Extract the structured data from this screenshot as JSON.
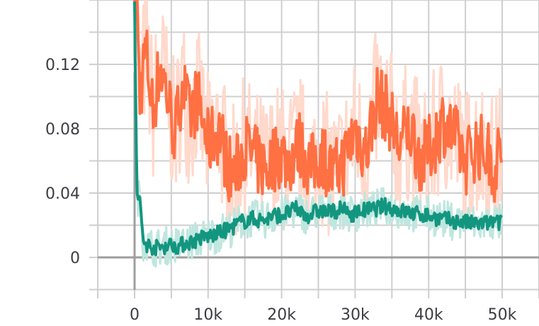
{
  "chart_data": {
    "type": "line",
    "title": "",
    "xlabel": "",
    "ylabel": "",
    "xlim": [
      -5000,
      55000
    ],
    "ylim": [
      -0.02,
      0.16
    ],
    "x_ticks": [
      0,
      10000,
      20000,
      30000,
      40000,
      50000
    ],
    "x_tick_labels": [
      "0",
      "10k",
      "20k",
      "30k",
      "40k",
      "50k"
    ],
    "y_ticks": [
      0,
      0.04,
      0.08,
      0.12
    ],
    "y_tick_labels": [
      "0",
      "0.04",
      "0.08",
      "0.12"
    ],
    "grid": true,
    "legend": "none",
    "series": [
      {
        "color": "#ff7043",
        "raw_color": "#ffd9cc",
        "x": [
          0,
          300,
          700,
          1500,
          2500,
          3500,
          4500,
          5500,
          6500,
          7500,
          8500,
          10000,
          11500,
          12500,
          13500,
          15000,
          16500,
          18000,
          19500,
          21000,
          22500,
          24000,
          25500,
          27000,
          28500,
          30000,
          31500,
          33000,
          34500,
          36000,
          37500,
          39000,
          40500,
          42000,
          43500,
          45000,
          46500,
          48000,
          49000,
          50000
        ],
        "values": [
          0.16,
          0.16,
          0.1,
          0.13,
          0.09,
          0.12,
          0.1,
          0.075,
          0.11,
          0.085,
          0.1,
          0.07,
          0.08,
          0.06,
          0.05,
          0.07,
          0.06,
          0.055,
          0.065,
          0.06,
          0.07,
          0.055,
          0.065,
          0.05,
          0.06,
          0.08,
          0.065,
          0.1,
          0.09,
          0.07,
          0.08,
          0.06,
          0.07,
          0.085,
          0.075,
          0.06,
          0.07,
          0.065,
          0.055,
          0.07
        ]
      },
      {
        "color": "#13967f",
        "raw_color": "#bfe6df",
        "x": [
          0,
          300,
          700,
          1200,
          2000,
          3000,
          4000,
          5000,
          6000,
          7000,
          8000,
          9000,
          10000,
          11500,
          13000,
          14500,
          16000,
          17500,
          19000,
          20500,
          22000,
          23500,
          25000,
          26500,
          28000,
          29500,
          31000,
          32500,
          34000,
          35500,
          37000,
          38500,
          40000,
          41500,
          43000,
          44500,
          46000,
          47500,
          49000,
          50000
        ],
        "values": [
          0.16,
          0.04,
          0.035,
          0.01,
          0.007,
          0.006,
          0.007,
          0.008,
          0.007,
          0.009,
          0.01,
          0.012,
          0.013,
          0.015,
          0.018,
          0.022,
          0.024,
          0.023,
          0.026,
          0.027,
          0.03,
          0.026,
          0.029,
          0.028,
          0.03,
          0.027,
          0.029,
          0.03,
          0.032,
          0.03,
          0.028,
          0.027,
          0.026,
          0.024,
          0.023,
          0.022,
          0.021,
          0.021,
          0.022,
          0.021
        ]
      }
    ]
  }
}
